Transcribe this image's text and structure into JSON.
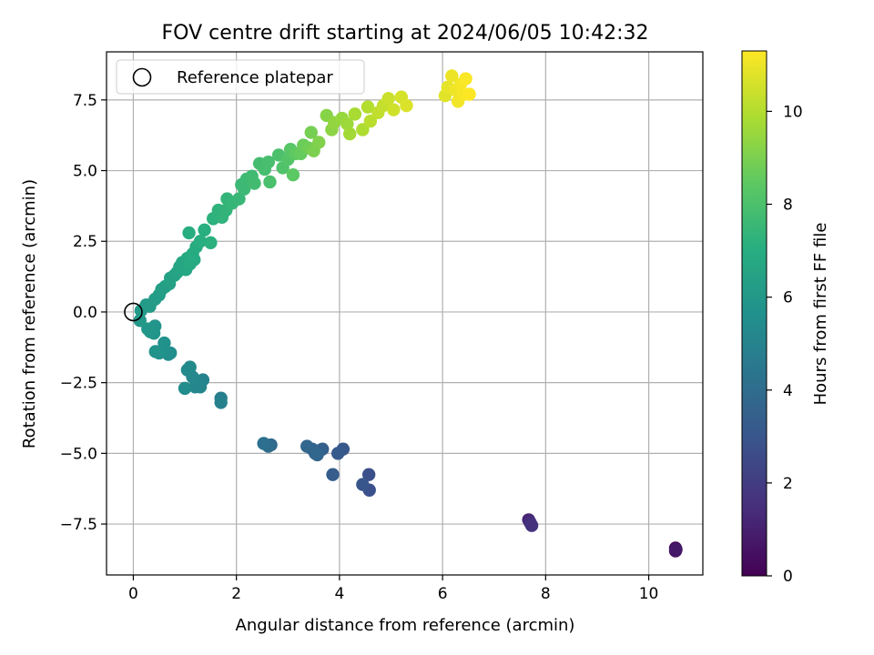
{
  "chart_data": {
    "type": "scatter",
    "title": "FOV centre drift starting at 2024/06/05 10:42:32",
    "xlabel": "Angular distance from reference (arcmin)",
    "ylabel": "Rotation from reference (arcmin)",
    "xlim": [
      -0.52,
      11.05
    ],
    "ylim": [
      -9.3,
      9.2
    ],
    "xticks": [
      0,
      2,
      4,
      6,
      8,
      10
    ],
    "yticks": [
      -7.5,
      -5.0,
      -2.5,
      0.0,
      2.5,
      5.0,
      7.5
    ],
    "xtick_labels": [
      "0",
      "2",
      "4",
      "6",
      "8",
      "10"
    ],
    "ytick_labels": [
      "−7.5",
      "−5.0",
      "−2.5",
      "0.0",
      "2.5",
      "5.0",
      "7.5"
    ],
    "grid": true,
    "legend": {
      "position": "top-left",
      "entries": [
        "Reference platepar"
      ]
    },
    "reference_point": {
      "x": 0,
      "y": 0
    },
    "colorbar": {
      "label": "Hours from first FF file",
      "colormap": "viridis",
      "range": [
        0,
        11.3
      ],
      "ticks": [
        0,
        2,
        4,
        6,
        8,
        10
      ],
      "tick_labels": [
        "0",
        "2",
        "4",
        "6",
        "8",
        "10"
      ]
    },
    "series": [
      {
        "values_format": "[x, y, hours]",
        "values": [
          [
            10.52,
            -8.35,
            0.3
          ],
          [
            10.52,
            -8.45,
            0.5
          ],
          [
            10.53,
            -8.4,
            0.7
          ],
          [
            7.67,
            -7.35,
            1.2
          ],
          [
            7.7,
            -7.45,
            1.4
          ],
          [
            7.73,
            -7.55,
            1.6
          ],
          [
            4.57,
            -5.75,
            2.7
          ],
          [
            4.58,
            -6.3,
            2.8
          ],
          [
            4.45,
            -6.1,
            3.0
          ],
          [
            4.07,
            -4.85,
            3.1
          ],
          [
            3.97,
            -5.0,
            3.2
          ],
          [
            3.87,
            -5.75,
            3.3
          ],
          [
            3.67,
            -4.85,
            3.4
          ],
          [
            3.62,
            -4.9,
            3.5
          ],
          [
            3.53,
            -5.0,
            3.55
          ],
          [
            3.47,
            -4.85,
            3.6
          ],
          [
            3.37,
            -4.75,
            3.7
          ],
          [
            3.57,
            -5.05,
            3.75
          ],
          [
            2.67,
            -4.7,
            3.9
          ],
          [
            2.62,
            -4.75,
            4.0
          ],
          [
            2.53,
            -4.65,
            4.1
          ],
          [
            1.7,
            -3.05,
            4.8
          ],
          [
            1.7,
            -3.2,
            4.9
          ],
          [
            1.35,
            -2.4,
            5.0
          ],
          [
            1.3,
            -2.65,
            5.1
          ],
          [
            1.22,
            -2.5,
            5.15
          ],
          [
            1.2,
            -2.65,
            5.2
          ],
          [
            1.15,
            -2.3,
            5.25
          ],
          [
            1.05,
            -2.05,
            5.3
          ],
          [
            1.1,
            -1.95,
            5.35
          ],
          [
            1.0,
            -2.7,
            5.4
          ],
          [
            0.72,
            -1.45,
            5.5
          ],
          [
            0.68,
            -1.5,
            5.55
          ],
          [
            0.58,
            -1.4,
            5.6
          ],
          [
            0.6,
            -1.1,
            5.65
          ],
          [
            0.5,
            -1.45,
            5.7
          ],
          [
            0.43,
            -1.4,
            5.75
          ],
          [
            0.42,
            -0.5,
            5.8
          ],
          [
            0.4,
            -0.75,
            5.85
          ],
          [
            0.33,
            -0.7,
            5.9
          ],
          [
            0.28,
            -0.6,
            5.95
          ],
          [
            0.13,
            -0.3,
            6.0
          ],
          [
            0.15,
            0.05,
            6.05
          ],
          [
            0.25,
            0.25,
            6.1
          ],
          [
            0.32,
            0.2,
            6.15
          ],
          [
            0.42,
            0.45,
            6.2
          ],
          [
            0.5,
            0.6,
            6.25
          ],
          [
            0.55,
            0.8,
            6.3
          ],
          [
            0.62,
            0.9,
            6.35
          ],
          [
            0.7,
            1.0,
            6.4
          ],
          [
            0.72,
            1.2,
            6.45
          ],
          [
            0.8,
            1.3,
            6.5
          ],
          [
            0.85,
            1.4,
            6.55
          ],
          [
            0.9,
            1.6,
            6.6
          ],
          [
            0.95,
            1.75,
            6.65
          ],
          [
            1.02,
            1.5,
            6.7
          ],
          [
            1.05,
            1.9,
            6.75
          ],
          [
            1.1,
            1.7,
            6.8
          ],
          [
            1.18,
            1.85,
            6.85
          ],
          [
            1.15,
            2.05,
            6.9
          ],
          [
            1.22,
            2.3,
            6.95
          ],
          [
            1.08,
            2.8,
            7.0
          ],
          [
            1.3,
            2.5,
            7.05
          ],
          [
            1.38,
            2.9,
            7.1
          ],
          [
            1.5,
            2.45,
            7.15
          ],
          [
            1.55,
            3.3,
            7.2
          ],
          [
            1.65,
            3.6,
            7.25
          ],
          [
            1.72,
            3.35,
            7.3
          ],
          [
            1.8,
            3.6,
            7.35
          ],
          [
            1.82,
            4.0,
            7.4
          ],
          [
            1.92,
            3.85,
            7.45
          ],
          [
            2.05,
            4.0,
            7.5
          ],
          [
            2.1,
            4.5,
            7.55
          ],
          [
            2.15,
            4.35,
            7.6
          ],
          [
            2.2,
            4.7,
            7.65
          ],
          [
            2.3,
            4.8,
            7.7
          ],
          [
            2.35,
            4.55,
            7.75
          ],
          [
            2.45,
            5.25,
            7.8
          ],
          [
            2.55,
            5.05,
            7.85
          ],
          [
            2.62,
            5.3,
            7.9
          ],
          [
            2.65,
            4.6,
            7.95
          ],
          [
            2.82,
            5.55,
            8.0
          ],
          [
            2.9,
            5.1,
            8.1
          ],
          [
            3.0,
            5.4,
            8.2
          ],
          [
            3.05,
            5.75,
            8.3
          ],
          [
            3.1,
            4.85,
            8.4
          ],
          [
            3.15,
            5.6,
            8.5
          ],
          [
            3.25,
            5.6,
            8.6
          ],
          [
            3.3,
            5.9,
            8.7
          ],
          [
            3.4,
            5.8,
            8.8
          ],
          [
            3.45,
            6.35,
            8.9
          ],
          [
            3.5,
            5.7,
            9.0
          ],
          [
            3.6,
            6.0,
            9.1
          ],
          [
            3.75,
            6.95,
            9.2
          ],
          [
            3.85,
            6.45,
            9.3
          ],
          [
            3.9,
            6.7,
            9.4
          ],
          [
            4.05,
            6.85,
            9.5
          ],
          [
            4.15,
            6.65,
            9.6
          ],
          [
            4.2,
            6.3,
            9.7
          ],
          [
            4.3,
            7.0,
            9.8
          ],
          [
            4.45,
            6.45,
            9.9
          ],
          [
            4.55,
            7.25,
            10.0
          ],
          [
            4.6,
            6.75,
            10.1
          ],
          [
            4.75,
            7.05,
            10.2
          ],
          [
            4.85,
            7.3,
            10.3
          ],
          [
            4.95,
            7.55,
            10.4
          ],
          [
            5.05,
            7.15,
            10.5
          ],
          [
            5.2,
            7.6,
            10.6
          ],
          [
            5.3,
            7.3,
            10.7
          ],
          [
            6.05,
            7.65,
            10.8
          ],
          [
            6.1,
            7.95,
            10.9
          ],
          [
            6.18,
            8.35,
            11.0
          ],
          [
            6.25,
            7.85,
            11.05
          ],
          [
            6.3,
            7.45,
            11.1
          ],
          [
            6.35,
            8.05,
            11.15
          ],
          [
            6.4,
            7.7,
            11.2
          ],
          [
            6.45,
            8.25,
            11.25
          ],
          [
            6.52,
            7.7,
            11.3
          ]
        ]
      }
    ]
  }
}
